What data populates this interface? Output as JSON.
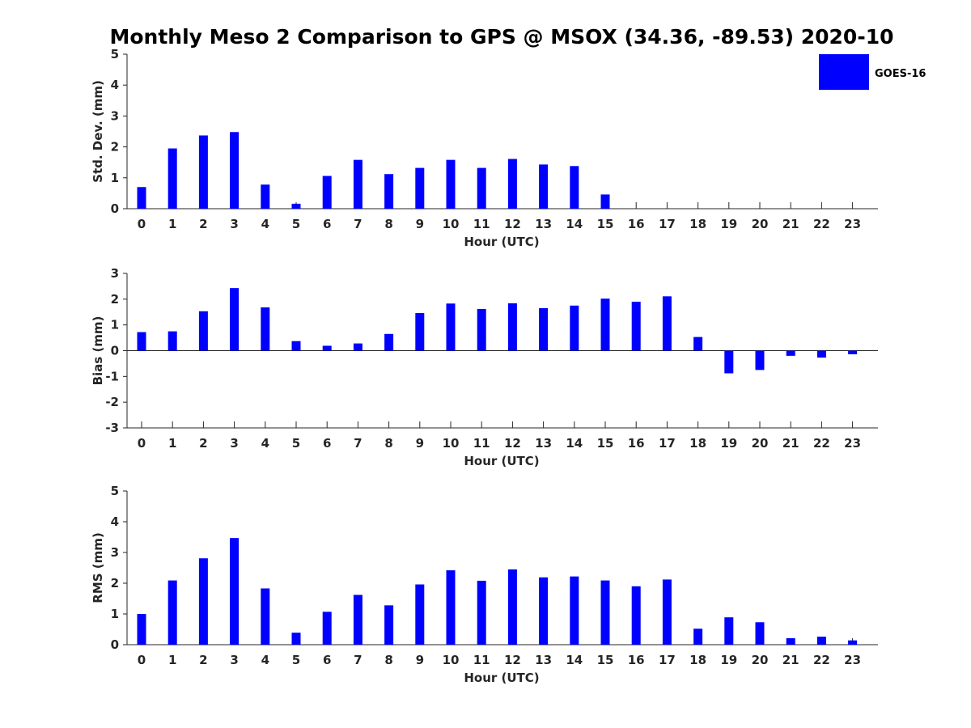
{
  "title": "Monthly Meso 2 Comparison to GPS @ MSOX (34.36, -89.53) 2020-10",
  "legend": {
    "label": "GOES-16",
    "color": "#0000ff",
    "placement": "top-right"
  },
  "chart_data": [
    {
      "type": "bar",
      "panel": "std-dev",
      "xlabel": "Hour (UTC)",
      "ylabel": "Std. Dev. (mm)",
      "ylim": [
        0,
        5
      ],
      "yticks": [
        0,
        1,
        2,
        3,
        4,
        5
      ],
      "categories": [
        "0",
        "1",
        "2",
        "3",
        "4",
        "5",
        "6",
        "7",
        "8",
        "9",
        "10",
        "11",
        "12",
        "13",
        "14",
        "15",
        "16",
        "17",
        "18",
        "19",
        "20",
        "21",
        "22",
        "23"
      ],
      "series": [
        {
          "name": "GOES-16",
          "color": "#0000ff",
          "values": [
            0.7,
            1.95,
            2.37,
            2.48,
            0.78,
            0.16,
            1.06,
            1.58,
            1.12,
            1.32,
            1.58,
            1.32,
            1.61,
            1.43,
            1.38,
            0.46,
            0,
            0,
            0,
            0,
            0,
            0,
            0,
            0
          ]
        }
      ],
      "grid": false
    },
    {
      "type": "bar",
      "panel": "bias",
      "xlabel": "Hour (UTC)",
      "ylabel": "Bias (mm)",
      "ylim": [
        -3,
        3
      ],
      "yticks": [
        -3,
        -2,
        -1,
        0,
        1,
        2,
        3
      ],
      "categories": [
        "0",
        "1",
        "2",
        "3",
        "4",
        "5",
        "6",
        "7",
        "8",
        "9",
        "10",
        "11",
        "12",
        "13",
        "14",
        "15",
        "16",
        "17",
        "18",
        "19",
        "20",
        "21",
        "22",
        "23"
      ],
      "series": [
        {
          "name": "GOES-16",
          "color": "#0000ff",
          "values": [
            0.72,
            0.75,
            1.53,
            2.43,
            1.68,
            0.37,
            0.19,
            0.28,
            0.65,
            1.46,
            1.83,
            1.62,
            1.84,
            1.65,
            1.75,
            2.02,
            1.9,
            2.11,
            0.53,
            -0.88,
            -0.75,
            -0.2,
            -0.27,
            -0.14
          ]
        }
      ],
      "grid": false
    },
    {
      "type": "bar",
      "panel": "rms",
      "xlabel": "Hour (UTC)",
      "ylabel": "RMS (mm)",
      "ylim": [
        0,
        5
      ],
      "yticks": [
        0,
        1,
        2,
        3,
        4,
        5
      ],
      "categories": [
        "0",
        "1",
        "2",
        "3",
        "4",
        "5",
        "6",
        "7",
        "8",
        "9",
        "10",
        "11",
        "12",
        "13",
        "14",
        "15",
        "16",
        "17",
        "18",
        "19",
        "20",
        "21",
        "22",
        "23"
      ],
      "series": [
        {
          "name": "GOES-16",
          "color": "#0000ff",
          "values": [
            1.0,
            2.09,
            2.81,
            3.47,
            1.83,
            0.39,
            1.07,
            1.62,
            1.28,
            1.96,
            2.42,
            2.08,
            2.45,
            2.19,
            2.22,
            2.09,
            1.9,
            2.12,
            0.52,
            0.89,
            0.73,
            0.21,
            0.26,
            0.14
          ]
        }
      ],
      "grid": false
    }
  ]
}
